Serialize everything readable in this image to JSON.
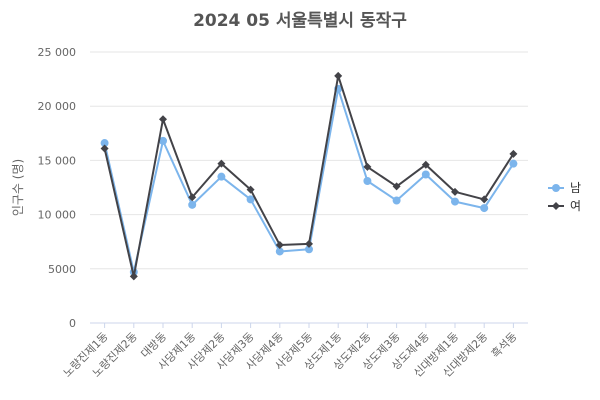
{
  "chart_data": {
    "type": "line",
    "title": "2024 05 서울특별시 동작구",
    "xlabel": "",
    "ylabel": "인구수 (명)",
    "ylim": [
      0,
      25000
    ],
    "yticks": [
      0,
      5000,
      10000,
      15000,
      20000,
      25000
    ],
    "ytick_labels": [
      "0",
      "5000",
      "10 000",
      "15 000",
      "20 000",
      "25 000"
    ],
    "grid": true,
    "legend_position": "right",
    "categories": [
      "노량진제1동",
      "노량진제2동",
      "대방동",
      "사당제1동",
      "사당제2동",
      "사당제3동",
      "사당제4동",
      "사당제5동",
      "상도제1동",
      "상도제2동",
      "상도제3동",
      "상도제4동",
      "신대방제1동",
      "신대방제2동",
      "흑석동"
    ],
    "series": [
      {
        "name": "남",
        "color": "#7cb5ec",
        "marker": "circle",
        "values": [
          16600,
          4700,
          16800,
          10900,
          13500,
          11400,
          6600,
          6800,
          21600,
          13100,
          11300,
          13700,
          11200,
          10600,
          14700
        ]
      },
      {
        "name": "여",
        "color": "#434348",
        "marker": "diamond",
        "values": [
          16100,
          4300,
          18800,
          11600,
          14700,
          12300,
          7200,
          7300,
          22800,
          14400,
          12600,
          14600,
          12100,
          11400,
          15600
        ]
      }
    ]
  }
}
